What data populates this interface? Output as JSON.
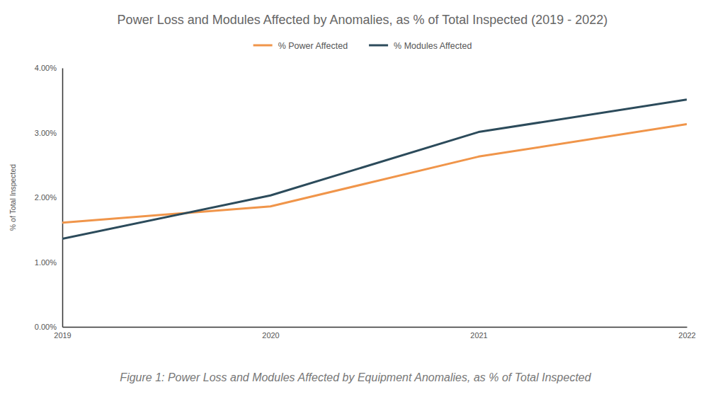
{
  "chart_data": {
    "type": "line",
    "title": "Power Loss and Modules Affected by Anomalies, as % of Total Inspected (2019 - 2022)",
    "caption": "Figure 1: Power Loss and Modules Affected by Equipment Anomalies, as % of Total Inspected",
    "y_label": "% of Total Inspected",
    "categories": [
      "2019",
      "2020",
      "2021",
      "2022"
    ],
    "series": [
      {
        "name": "% Power Affected",
        "color": "#f0954a",
        "values": [
          1.61,
          1.86,
          2.63,
          3.13
        ]
      },
      {
        "name": "% Modules Affected",
        "color": "#2c4b5b",
        "values": [
          1.36,
          2.03,
          3.01,
          3.51
        ]
      }
    ],
    "ylim": [
      0,
      4
    ],
    "yticks": [
      {
        "value": 0,
        "label": "0.00%"
      },
      {
        "value": 1,
        "label": "1.00%"
      },
      {
        "value": 2,
        "label": "2.00%"
      },
      {
        "value": 3,
        "label": "3.00%"
      },
      {
        "value": 4,
        "label": "4.00%"
      }
    ],
    "legend": "top",
    "grid": false
  }
}
